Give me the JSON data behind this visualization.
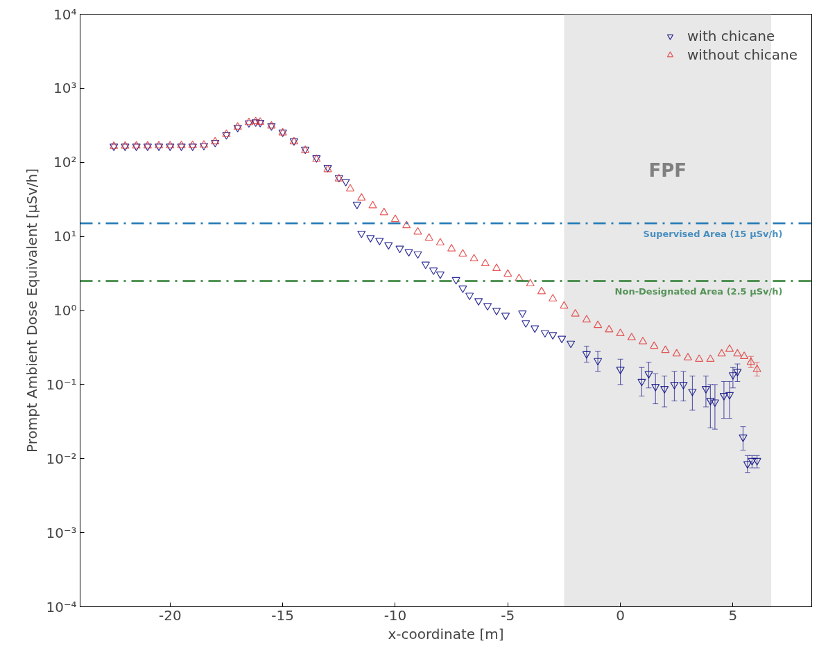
{
  "chart_data": {
    "type": "scatter",
    "xlabel": "x-coordinate [m]",
    "ylabel": "Prompt Ambient Dose Equivalent [μSv/h]",
    "log": "y",
    "grid": false,
    "legend": "top right",
    "marker": "triangle",
    "xlim": [
      -24,
      8.5
    ],
    "xticks": [
      -20,
      -15,
      -10,
      -5,
      0,
      5
    ],
    "ylim": [
      0.0001,
      10000
    ],
    "yticks": [
      {
        "value": 0.0001,
        "label": "10⁻⁴"
      },
      {
        "value": 0.001,
        "label": "10⁻³"
      },
      {
        "value": 0.01,
        "label": "10⁻²"
      },
      {
        "value": 0.1,
        "label": "10⁻¹"
      },
      {
        "value": 1,
        "label": "10⁰"
      },
      {
        "value": 10,
        "label": "10¹"
      },
      {
        "value": 100,
        "label": "10²"
      },
      {
        "value": 1000,
        "label": "10³"
      },
      {
        "value": 10000,
        "label": "10⁴"
      }
    ],
    "ref_lines": [
      {
        "axis": "y",
        "value": 15,
        "label": "Supervised Area (15 μSv/h)",
        "color": "#1f77b4",
        "line_style": "dashdot"
      },
      {
        "axis": "y",
        "value": 2.5,
        "label": "Non-Designated Area (2.5 μSv/h)",
        "color": "#2e7d32",
        "line_style": "dashdot"
      }
    ],
    "bands": [
      {
        "axis": "x",
        "from": -2.5,
        "to": 6.7,
        "label": "FPF",
        "color": "#e8e8e8"
      }
    ],
    "series": [
      {
        "name": "with chicane",
        "color": "#000080",
        "x": [
          -22.5,
          -22,
          -21.5,
          -21,
          -20.5,
          -20,
          -19.5,
          -19,
          -18.5,
          -18,
          -17.5,
          -17,
          -16.5,
          -16.2,
          -16,
          -15.5,
          -15,
          -14.5,
          -14,
          -13.5,
          -13,
          -12.5,
          -12.2,
          -11.7,
          -11.5,
          -11.1,
          -10.7,
          -10.3,
          -9.8,
          -9.4,
          -9.0,
          -8.65,
          -8.3,
          -8.0,
          -7.3,
          -7.0,
          -6.7,
          -6.3,
          -5.9,
          -5.5,
          -5.1,
          -4.35,
          -4.2,
          -3.8,
          -3.35,
          -3.0,
          -2.6,
          -2.2,
          -1.5,
          -1.0,
          0,
          0.95,
          1.26,
          1.56,
          1.96,
          2.4,
          2.8,
          3.2,
          3.8,
          4.0,
          4.2,
          4.6,
          4.85,
          5.0,
          5.2,
          5.45,
          5.65,
          5.85,
          6.07
        ],
        "values": [
          165,
          165,
          165,
          165,
          165,
          165,
          165,
          165,
          168,
          185,
          235,
          295,
          340,
          350,
          345,
          310,
          255,
          195,
          150,
          115,
          85,
          62,
          55,
          27,
          11,
          9.6,
          8.8,
          7.7,
          6.9,
          6.2,
          5.8,
          4.2,
          3.5,
          3.1,
          2.6,
          2.0,
          1.6,
          1.35,
          1.16,
          1.0,
          0.86,
          0.92,
          0.68,
          0.58,
          0.5,
          0.47,
          0.42,
          0.36,
          0.26,
          0.21,
          0.16,
          0.11,
          0.14,
          0.094,
          0.088,
          0.1,
          0.1,
          0.081,
          0.088,
          0.061,
          0.058,
          0.071,
          0.073,
          0.135,
          0.15,
          0.0195,
          0.0085,
          0.0094,
          0.0094
        ],
        "errors": [
          null,
          null,
          null,
          null,
          null,
          null,
          null,
          null,
          null,
          null,
          null,
          null,
          null,
          null,
          null,
          null,
          null,
          null,
          null,
          null,
          null,
          null,
          null,
          null,
          null,
          null,
          null,
          null,
          null,
          null,
          null,
          null,
          null,
          null,
          null,
          null,
          null,
          null,
          null,
          null,
          null,
          null,
          null,
          null,
          null,
          null,
          null,
          null,
          [
            0.2,
            0.33
          ],
          [
            0.15,
            0.28
          ],
          [
            0.1,
            0.22
          ],
          [
            0.07,
            0.17
          ],
          [
            0.09,
            0.2
          ],
          [
            0.055,
            0.14
          ],
          [
            0.05,
            0.13
          ],
          [
            0.06,
            0.15
          ],
          [
            0.06,
            0.15
          ],
          [
            0.045,
            0.13
          ],
          [
            0.05,
            0.13
          ],
          [
            0.026,
            0.1
          ],
          [
            0.025,
            0.1
          ],
          [
            0.035,
            0.11
          ],
          [
            0.035,
            0.11
          ],
          [
            0.09,
            0.17
          ],
          [
            0.11,
            0.19
          ],
          [
            0.013,
            0.027
          ],
          [
            0.0065,
            0.011
          ],
          [
            0.0075,
            0.011
          ],
          [
            0.0075,
            0.011
          ]
        ]
      },
      {
        "name": "without chicane",
        "color": "#e03030",
        "x": [
          -22.5,
          -22,
          -21.5,
          -21,
          -20.5,
          -20,
          -19.5,
          -19,
          -18.5,
          -18,
          -17.5,
          -17,
          -16.5,
          -16.2,
          -16,
          -15.5,
          -15,
          -14.5,
          -14,
          -13.5,
          -13,
          -12.5,
          -12,
          -11.5,
          -11,
          -10.5,
          -10,
          -9.5,
          -9,
          -8.5,
          -8,
          -7.5,
          -7,
          -6.5,
          -6,
          -5.5,
          -5,
          -4.5,
          -4,
          -3.5,
          -3,
          -2.5,
          -2,
          -1.5,
          -1,
          -0.5,
          0,
          0.5,
          1,
          1.5,
          2,
          2.5,
          3,
          3.5,
          4,
          4.5,
          4.85,
          5.2,
          5.5,
          5.8,
          6.07
        ],
        "values": [
          165,
          166,
          167,
          167,
          168,
          168,
          169,
          170,
          172,
          190,
          240,
          300,
          345,
          355,
          350,
          310,
          250,
          190,
          145,
          110,
          80,
          60,
          44,
          33,
          26,
          21,
          17,
          14,
          11.5,
          9.5,
          8.2,
          6.8,
          5.8,
          5.0,
          4.3,
          3.7,
          3.1,
          2.7,
          2.3,
          1.8,
          1.44,
          1.15,
          0.9,
          0.75,
          0.63,
          0.55,
          0.49,
          0.43,
          0.38,
          0.33,
          0.29,
          0.26,
          0.23,
          0.22,
          0.22,
          0.26,
          0.3,
          0.26,
          0.24,
          0.2,
          0.16
        ],
        "errors": [
          null,
          null,
          null,
          null,
          null,
          null,
          null,
          null,
          null,
          null,
          null,
          null,
          null,
          null,
          null,
          null,
          null,
          null,
          null,
          null,
          null,
          null,
          null,
          null,
          null,
          null,
          null,
          null,
          null,
          null,
          null,
          null,
          null,
          null,
          null,
          null,
          null,
          null,
          null,
          null,
          null,
          null,
          null,
          null,
          null,
          null,
          null,
          null,
          null,
          null,
          null,
          null,
          null,
          null,
          null,
          null,
          null,
          null,
          null,
          [
            0.17,
            0.24
          ],
          [
            0.13,
            0.2
          ]
        ]
      }
    ]
  }
}
